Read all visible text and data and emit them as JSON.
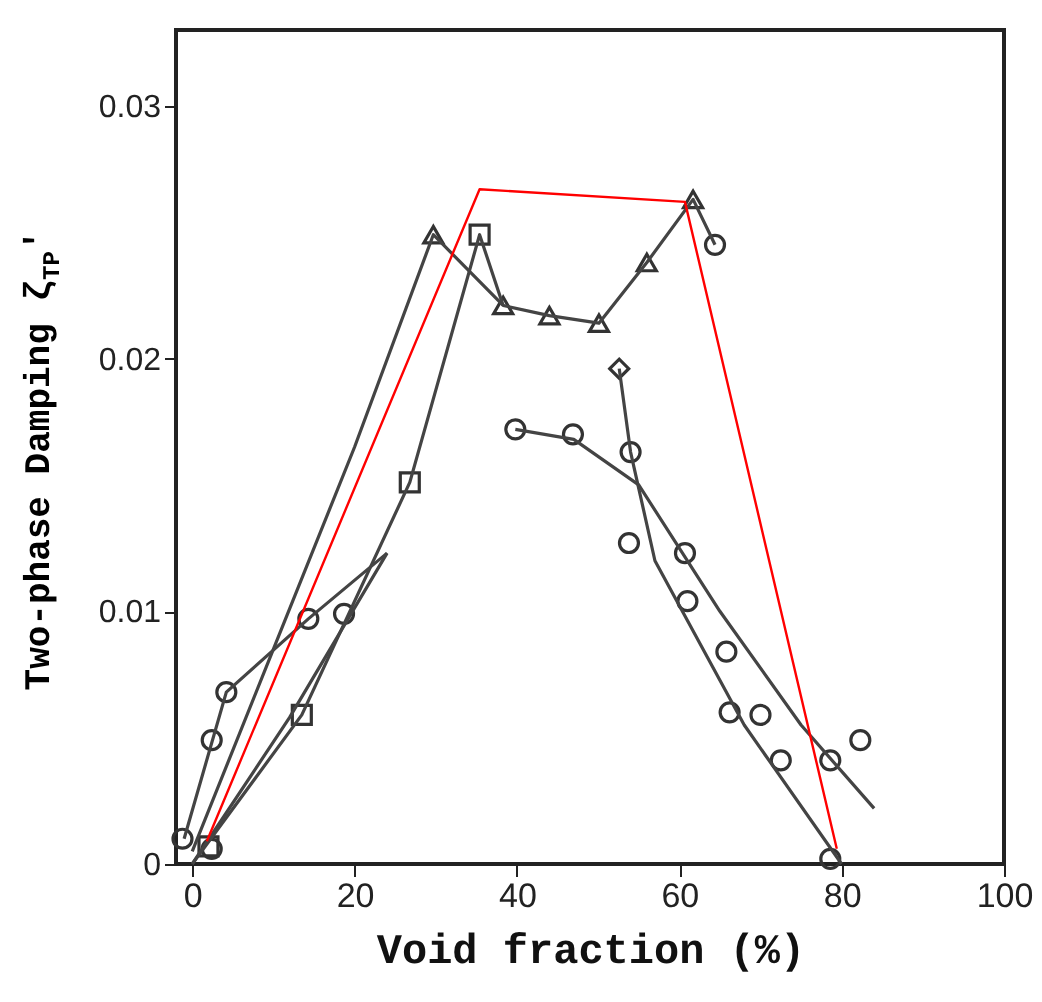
{
  "chart_data": {
    "type": "scatter",
    "xlabel": "Void fraction (%)",
    "ylabel": "Two-phase Damping ζ$_{TP}$'",
    "xlim": [
      -2,
      100
    ],
    "ylim": [
      0,
      0.033
    ],
    "xticks": [
      0,
      20,
      40,
      60,
      80,
      100
    ],
    "yticks": [
      0,
      0.01,
      0.02,
      0.03
    ],
    "series": [
      {
        "marker": "triangle",
        "color": "#333333",
        "x": [
          29.7,
          38.3,
          44,
          50.1,
          56,
          61.7
        ],
        "values": [
          0.0249,
          0.0221,
          0.0217,
          0.0214,
          0.0238,
          0.0263
        ]
      },
      {
        "marker": "square",
        "color": "#333333",
        "x": [
          35.4,
          26.8,
          13.5,
          2
        ],
        "values": [
          0.0249,
          0.0151,
          0.0059,
          0.0007
        ]
      },
      {
        "marker": "diamond",
        "color": "#333333",
        "x": [
          52.6
        ],
        "values": [
          0.0196
        ]
      },
      {
        "marker": "circle",
        "color": "#333333",
        "x": [
          -1.2,
          2.4,
          2.4,
          4.2,
          14.3,
          18.7,
          39.8,
          46.9,
          54,
          53.8,
          60.7,
          61,
          65.8,
          66.2,
          70,
          72.5,
          78.6,
          82.3,
          78.6,
          64.4
        ],
        "values": [
          0.001,
          0.0006,
          0.0049,
          0.0068,
          0.0097,
          0.0099,
          0.0172,
          0.017,
          0.0163,
          0.0127,
          0.0123,
          0.0104,
          0.0084,
          0.006,
          0.0059,
          0.0041,
          0.0041,
          0.0049,
          0.0002,
          0.0245
        ]
      },
      {
        "type": "line",
        "marker": "none",
        "color": "#444444",
        "x": [
          0,
          10,
          20,
          29.7,
          38.3,
          44,
          50.1,
          56,
          61.7,
          64.4
        ],
        "values": [
          0.0005,
          0.0085,
          0.0165,
          0.0249,
          0.0221,
          0.0217,
          0.0214,
          0.0238,
          0.0263,
          0.0245
        ]
      },
      {
        "type": "line",
        "marker": "none",
        "color": "#444444",
        "x": [
          0,
          13.5,
          26.8,
          35.4,
          38.3
        ],
        "values": [
          0,
          0.0059,
          0.0151,
          0.0249,
          0.0221
        ]
      },
      {
        "type": "line",
        "marker": "none",
        "color": "#444444",
        "x": [
          -1,
          4.2,
          14.3,
          24
        ],
        "values": [
          0.001,
          0.0068,
          0.0097,
          0.0123
        ]
      },
      {
        "type": "line",
        "marker": "none",
        "color": "#444444",
        "x": [
          0,
          12,
          24
        ],
        "values": [
          0,
          0.0058,
          0.0123
        ]
      },
      {
        "type": "line",
        "marker": "none",
        "color": "#444444",
        "x": [
          52.6,
          54,
          57,
          68,
          80
        ],
        "values": [
          0.0196,
          0.0163,
          0.012,
          0.0055,
          0
        ]
      },
      {
        "type": "line",
        "marker": "none",
        "color": "#444444",
        "x": [
          39.8,
          47,
          55,
          65,
          75,
          84
        ],
        "values": [
          0.0172,
          0.0168,
          0.015,
          0.01,
          0.0055,
          0.0022
        ]
      },
      {
        "type": "line",
        "marker": "none",
        "color": "#ff0000",
        "x": [
          1.8,
          35.4,
          60.7,
          79.4
        ],
        "values": [
          0.0009,
          0.0267,
          0.0262,
          0.0006
        ]
      }
    ]
  }
}
